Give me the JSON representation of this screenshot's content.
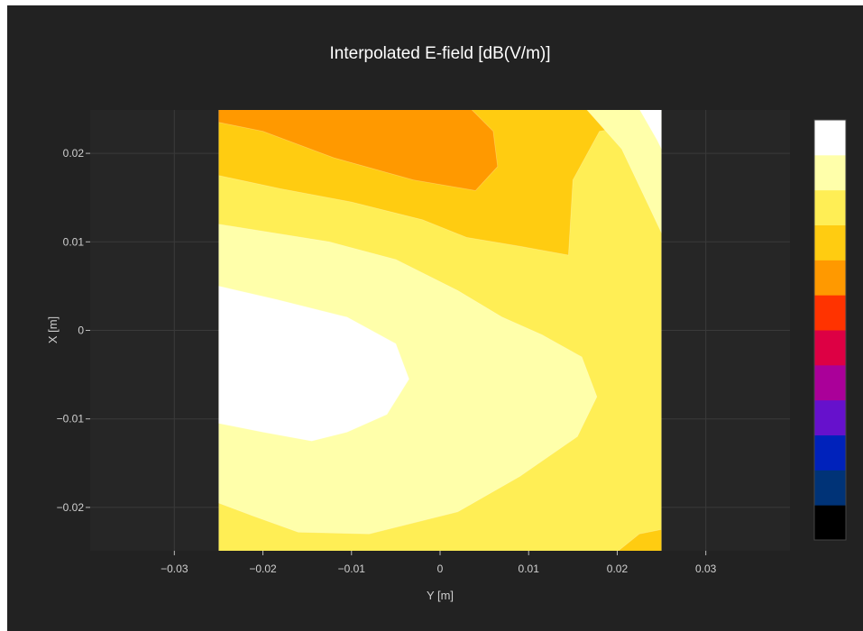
{
  "chart_data": {
    "type": "contour",
    "title": "Interpolated E-field [dB(V/m)]",
    "xlabel": "Y [m]",
    "ylabel": "X [m]",
    "xlim": [
      -0.0395,
      0.0395
    ],
    "ylim": [
      -0.0249,
      0.0249
    ],
    "data_extent": {
      "x": [
        -0.025,
        0.025
      ],
      "y": [
        -0.0249,
        0.0249
      ]
    },
    "x_ticks": [
      -0.03,
      -0.02,
      -0.01,
      0,
      0.01,
      0.02,
      0.03
    ],
    "x_tick_labels": [
      "−0.03",
      "−0.02",
      "−0.01",
      "0",
      "0.01",
      "0.02",
      "0.03"
    ],
    "y_ticks": [
      -0.02,
      -0.01,
      0,
      0.01,
      0.02
    ],
    "y_tick_labels": [
      "−0.02",
      "−0.01",
      "0",
      "0.01",
      "0.02"
    ],
    "grid": true,
    "background": "#262626",
    "colorscale": [
      "#000000",
      "#003377",
      "#0022bb",
      "#6611cc",
      "#aa0099",
      "#dd0044",
      "#ff3300",
      "#ff9900",
      "#ffcc11",
      "#ffee55",
      "#ffffaa",
      "#ffffff"
    ],
    "regions": [
      {
        "level": 9,
        "color": "#ffee55",
        "path": [
          [
            -0.025,
            -0.025
          ],
          [
            0.025,
            -0.025
          ],
          [
            0.025,
            0.025
          ],
          [
            -0.025,
            0.025
          ]
        ]
      },
      {
        "level": 8,
        "color": "#ffcc11",
        "path": [
          [
            -0.025,
            0.025
          ],
          [
            0.024,
            0.025
          ],
          [
            0.024,
            0.0235
          ],
          [
            0.018,
            0.0225
          ],
          [
            0.015,
            0.017
          ],
          [
            0.0145,
            0.0085
          ],
          [
            0.009,
            0.0095
          ],
          [
            0.003,
            0.0105
          ],
          [
            -0.002,
            0.0125
          ],
          [
            -0.01,
            0.0145
          ],
          [
            -0.018,
            0.016
          ],
          [
            -0.025,
            0.0175
          ]
        ]
      },
      {
        "level": 8,
        "color": "#ffcc11",
        "path": [
          [
            0.02,
            -0.025
          ],
          [
            0.025,
            -0.025
          ],
          [
            0.025,
            -0.0225
          ],
          [
            0.0225,
            -0.023
          ]
        ]
      },
      {
        "level": 7,
        "color": "#ff9900",
        "path": [
          [
            -0.025,
            0.025
          ],
          [
            0.0035,
            0.025
          ],
          [
            0.006,
            0.0225
          ],
          [
            0.0065,
            0.0185
          ],
          [
            0.004,
            0.0158
          ],
          [
            -0.003,
            0.017
          ],
          [
            -0.012,
            0.0195
          ],
          [
            -0.02,
            0.0225
          ],
          [
            -0.025,
            0.0235
          ]
        ]
      },
      {
        "level": 10,
        "color": "#ffffaa",
        "path": [
          [
            -0.025,
            0.012
          ],
          [
            -0.02,
            0.0112
          ],
          [
            -0.0125,
            0.01
          ],
          [
            -0.005,
            0.008
          ],
          [
            0.002,
            0.0045
          ],
          [
            0.007,
            0.0015
          ],
          [
            0.0115,
            -0.0005
          ],
          [
            0.016,
            -0.003
          ],
          [
            0.0177,
            -0.0075
          ],
          [
            0.0155,
            -0.012
          ],
          [
            0.009,
            -0.0165
          ],
          [
            0.002,
            -0.0205
          ],
          [
            -0.008,
            -0.023
          ],
          [
            -0.016,
            -0.0228
          ],
          [
            -0.021,
            -0.021
          ],
          [
            -0.025,
            -0.0195
          ]
        ]
      },
      {
        "level": 10,
        "color": "#ffffaa",
        "path": [
          [
            0.0165,
            0.025
          ],
          [
            0.025,
            0.025
          ],
          [
            0.025,
            0.011
          ],
          [
            0.0235,
            0.0142
          ],
          [
            0.0205,
            0.0205
          ]
        ]
      },
      {
        "level": 11,
        "color": "#ffffff",
        "path": [
          [
            -0.025,
            0.005
          ],
          [
            -0.0185,
            0.0035
          ],
          [
            -0.0105,
            0.0015
          ],
          [
            -0.005,
            -0.0015
          ],
          [
            -0.0035,
            -0.0055
          ],
          [
            -0.006,
            -0.0095
          ],
          [
            -0.0105,
            -0.0115
          ],
          [
            -0.0145,
            -0.0125
          ],
          [
            -0.02,
            -0.0115
          ],
          [
            -0.025,
            -0.0105
          ]
        ]
      },
      {
        "level": 11,
        "color": "#ffffff",
        "path": [
          [
            0.0225,
            0.025
          ],
          [
            0.025,
            0.025
          ],
          [
            0.025,
            0.0205
          ],
          [
            0.0245,
            0.0215
          ]
        ]
      }
    ]
  }
}
